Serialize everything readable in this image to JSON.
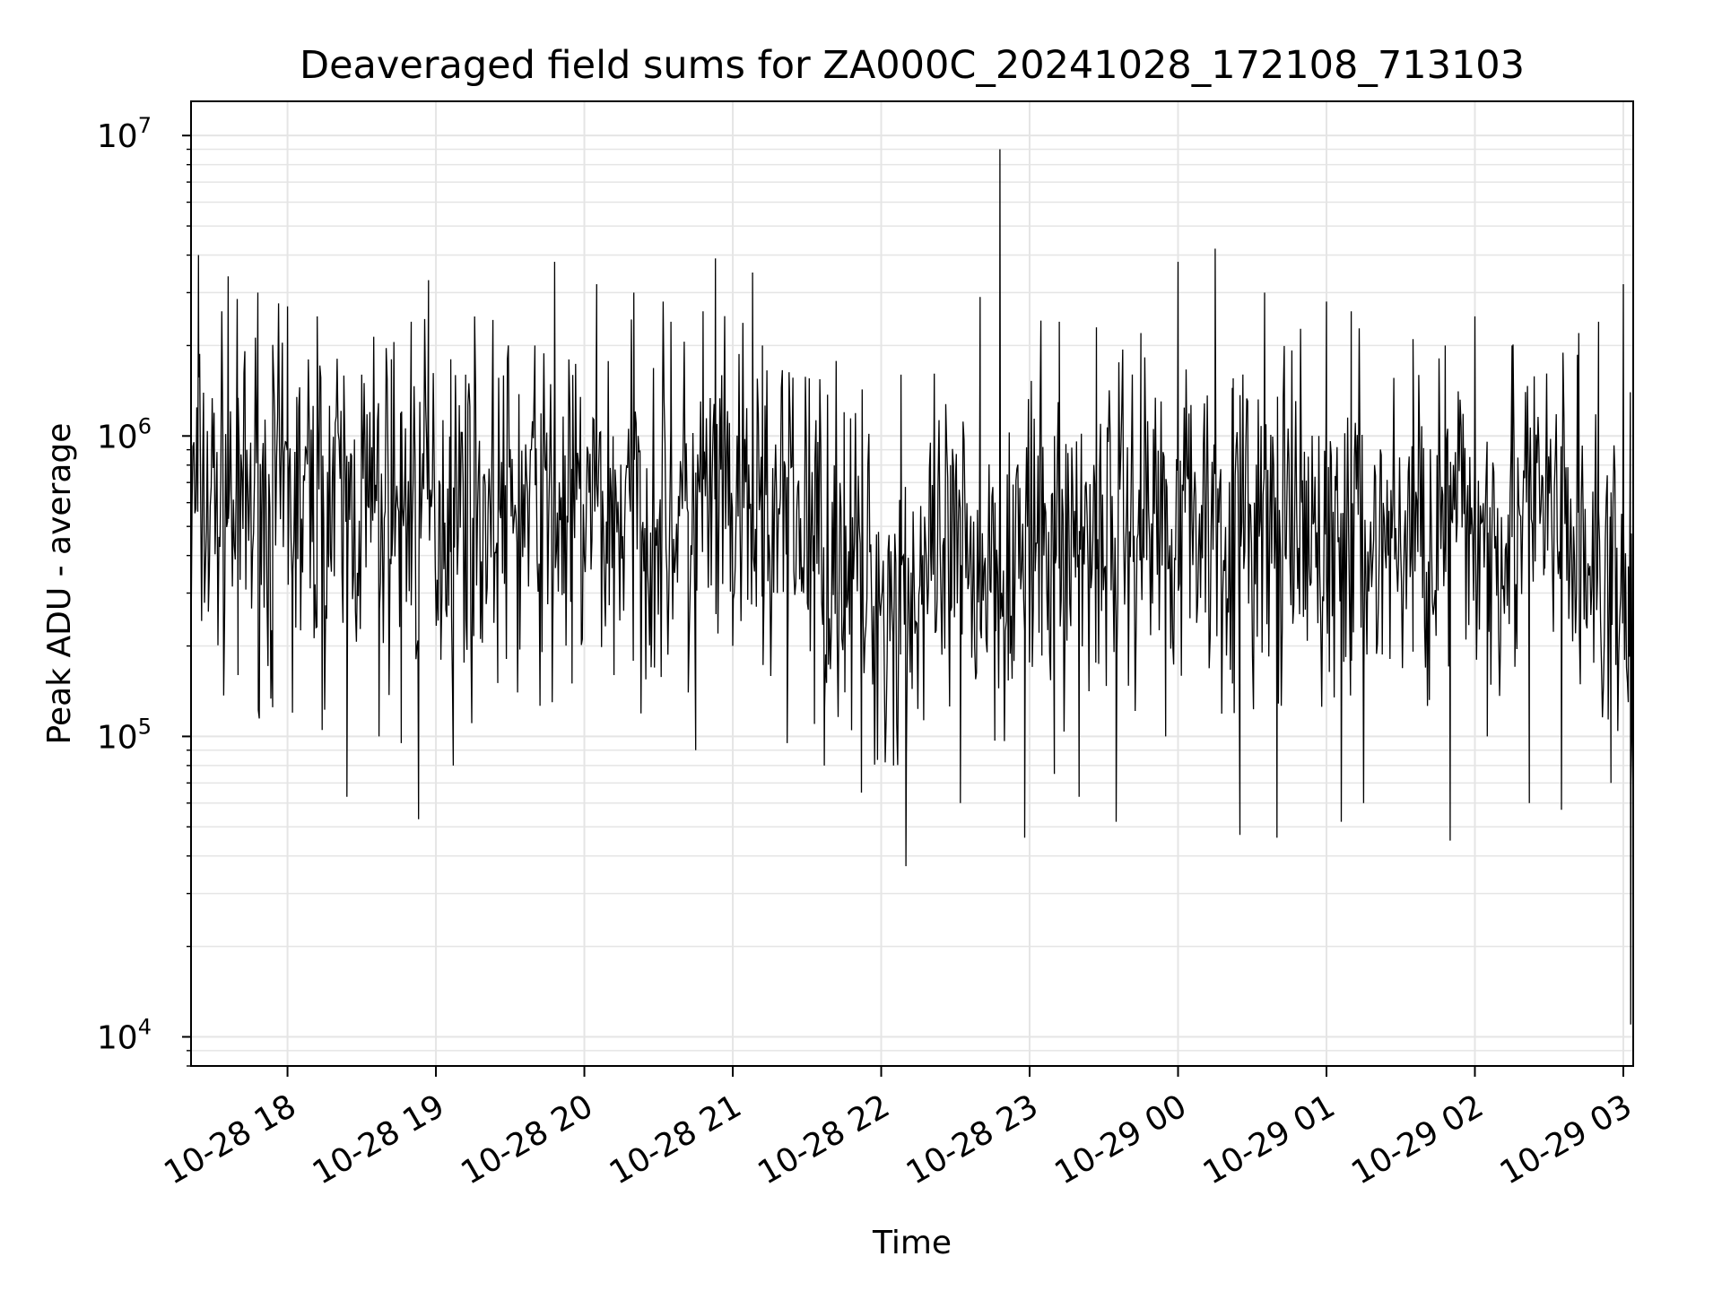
{
  "chart_data": {
    "type": "line",
    "title": "Deaveraged field sums for ZA000C_20241028_172108_713103",
    "xlabel": "Time",
    "ylabel": "Peak ADU - average",
    "x_ticks": [
      "10-28 18",
      "10-28 19",
      "10-28 20",
      "10-28 21",
      "10-28 22",
      "10-28 23",
      "10-29 00",
      "10-29 01",
      "10-29 02",
      "10-29 03"
    ],
    "x_range": [
      "2024-10-28 17:21",
      "2024-10-29 03:04"
    ],
    "y_scale": "log",
    "y_range": [
      8000,
      13000000
    ],
    "y_ticks": [
      {
        "base": "10",
        "exp": "4",
        "value": 10000
      },
      {
        "base": "10",
        "exp": "5",
        "value": 100000
      },
      {
        "base": "10",
        "exp": "6",
        "value": 1000000
      },
      {
        "base": "10",
        "exp": "7",
        "value": 10000000
      }
    ],
    "grid": true,
    "line_color": "#000000",
    "grid_color": "#e5e5e5",
    "series": [
      {
        "points": [
          [
            "2024-10-28 17:21",
            200000
          ],
          [
            "2024-10-28 17:24",
            4000000
          ],
          [
            "2024-10-28 17:28",
            260000
          ],
          [
            "2024-10-28 17:36",
            3400000
          ],
          [
            "2024-10-28 17:40",
            160000
          ],
          [
            "2024-10-28 17:48",
            3000000
          ],
          [
            "2024-10-28 17:54",
            125000
          ],
          [
            "2024-10-28 18:00",
            2700000
          ],
          [
            "2024-10-28 18:02",
            120000
          ],
          [
            "2024-10-28 18:12",
            2500000
          ],
          [
            "2024-10-28 18:14",
            105000
          ],
          [
            "2024-10-28 18:24",
            63000
          ],
          [
            "2024-10-28 18:30",
            1600000
          ],
          [
            "2024-10-28 18:37",
            100000
          ],
          [
            "2024-10-28 18:42",
            1800000
          ],
          [
            "2024-10-28 18:46",
            95000
          ],
          [
            "2024-10-28 18:50",
            2400000
          ],
          [
            "2024-10-28 18:53",
            53000
          ],
          [
            "2024-10-28 18:57",
            3300000
          ],
          [
            "2024-10-28 19:02",
            180000
          ],
          [
            "2024-10-28 19:06",
            1800000
          ],
          [
            "2024-10-28 19:07",
            80000
          ],
          [
            "2024-10-28 19:12",
            1600000
          ],
          [
            "2024-10-28 19:25",
            300000
          ],
          [
            "2024-10-28 19:33",
            140000
          ],
          [
            "2024-10-28 19:40",
            2000000
          ],
          [
            "2024-10-28 19:47",
            130000
          ],
          [
            "2024-10-28 19:48",
            3800000
          ],
          [
            "2024-10-28 19:55",
            150000
          ],
          [
            "2024-10-28 20:05",
            3200000
          ],
          [
            "2024-10-28 20:12",
            160000
          ],
          [
            "2024-10-28 20:20",
            3000000
          ],
          [
            "2024-10-28 20:27",
            170000
          ],
          [
            "2024-10-28 20:35",
            2400000
          ],
          [
            "2024-10-28 20:42",
            140000
          ],
          [
            "2024-10-28 20:48",
            2600000
          ],
          [
            "2024-10-28 20:45",
            90000
          ],
          [
            "2024-10-28 20:53",
            3900000
          ],
          [
            "2024-10-28 21:00",
            200000
          ],
          [
            "2024-10-28 21:08",
            3500000
          ],
          [
            "2024-10-28 21:12",
            2000000
          ],
          [
            "2024-10-28 21:18",
            300000
          ],
          [
            "2024-10-28 21:22",
            95000
          ],
          [
            "2024-10-28 21:33",
            110000
          ],
          [
            "2024-10-28 21:37",
            80000
          ],
          [
            "2024-10-28 21:45",
            1200000
          ],
          [
            "2024-10-28 21:52",
            65000
          ],
          [
            "2024-10-28 22:05",
            80000
          ],
          [
            "2024-10-28 22:08",
            1600000
          ],
          [
            "2024-10-28 22:10",
            37000
          ],
          [
            "2024-10-28 22:20",
            400000
          ],
          [
            "2024-10-28 22:28",
            800000
          ],
          [
            "2024-10-28 22:32",
            60000
          ],
          [
            "2024-10-28 22:40",
            2900000
          ],
          [
            "2024-10-28 22:46",
            600000
          ],
          [
            "2024-10-28 22:48",
            9000000
          ],
          [
            "2024-10-28 22:53",
            200000
          ],
          [
            "2024-10-28 22:58",
            46000
          ],
          [
            "2024-10-28 23:05",
            300000
          ],
          [
            "2024-10-28 23:10",
            75000
          ],
          [
            "2024-10-28 23:12",
            2400000
          ],
          [
            "2024-10-28 23:20",
            63000
          ],
          [
            "2024-10-28 23:27",
            2300000
          ],
          [
            "2024-10-28 23:35",
            52000
          ],
          [
            "2024-10-28 23:45",
            2200000
          ],
          [
            "2024-10-28 23:55",
            100000
          ],
          [
            "2024-10-29 00:00",
            3800000
          ],
          [
            "2024-10-29 00:05",
            600000
          ],
          [
            "2024-10-29 00:15",
            4200000
          ],
          [
            "2024-10-29 00:22",
            150000
          ],
          [
            "2024-10-29 00:25",
            47000
          ],
          [
            "2024-10-29 00:35",
            3000000
          ],
          [
            "2024-10-29 00:40",
            46000
          ],
          [
            "2024-10-29 00:50",
            600000
          ],
          [
            "2024-10-29 01:00",
            2800000
          ],
          [
            "2024-10-29 01:06",
            52000
          ],
          [
            "2024-10-29 01:10",
            2600000
          ],
          [
            "2024-10-29 01:15",
            60000
          ],
          [
            "2024-10-29 01:25",
            400000
          ],
          [
            "2024-10-29 01:35",
            2100000
          ],
          [
            "2024-10-29 01:48",
            2000000
          ],
          [
            "2024-10-29 01:50",
            45000
          ],
          [
            "2024-10-29 02:00",
            2500000
          ],
          [
            "2024-10-29 02:05",
            100000
          ],
          [
            "2024-10-29 02:15",
            2000000
          ],
          [
            "2024-10-29 02:22",
            60000
          ],
          [
            "2024-10-29 02:28",
            400000
          ],
          [
            "2024-10-29 02:35",
            57000
          ],
          [
            "2024-10-29 02:42",
            2200000
          ],
          [
            "2024-10-29 02:50",
            2400000
          ],
          [
            "2024-10-29 02:55",
            70000
          ],
          [
            "2024-10-29 03:00",
            3200000
          ],
          [
            "2024-10-29 03:02",
            130000
          ],
          [
            "2024-10-29 03:03",
            11000
          ],
          [
            "2024-10-29 03:04",
            60000
          ]
        ]
      }
    ]
  }
}
